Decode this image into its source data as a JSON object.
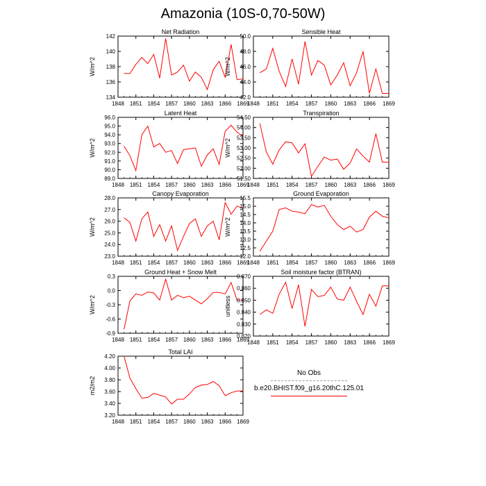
{
  "title": "Amazonia (10S-0,70-50W)",
  "colors": {
    "series": "#ff0000",
    "noobs": "#999999"
  },
  "legend": {
    "noobs_label": "No Obs",
    "model_label": "b.e20.BHIST.f09_g16.20thC.125.01"
  },
  "chart_data": [
    {
      "type": "line",
      "title": "Net Radiation",
      "ylabel": "W/m^2",
      "xlim": [
        1848,
        1869
      ],
      "xticks": [
        "1848",
        "1851",
        "1854",
        "1857",
        "1860",
        "1863",
        "1866",
        "1869"
      ],
      "ylim": [
        134,
        142
      ],
      "yticks": [
        "134",
        "136",
        "138",
        "140",
        "142"
      ],
      "x": [
        1849,
        1850,
        1851,
        1852,
        1853,
        1854,
        1855,
        1856,
        1857,
        1858,
        1859,
        1860,
        1861,
        1862,
        1863,
        1864,
        1865,
        1866,
        1867,
        1868,
        1869
      ],
      "values": [
        137.1,
        137.1,
        138.3,
        139.2,
        138.4,
        139.6,
        136.5,
        141.7,
        136.9,
        137.3,
        138.2,
        136.1,
        137.3,
        136.6,
        135.0,
        137.6,
        138.7,
        136.6,
        140.9,
        136.3,
        136.4
      ]
    },
    {
      "type": "line",
      "title": "Sensible Heat",
      "ylabel": "W/m^2",
      "xlim": [
        1848,
        1869
      ],
      "xticks": [
        "1848",
        "1851",
        "1854",
        "1857",
        "1860",
        "1863",
        "1866",
        "1869"
      ],
      "ylim": [
        42.0,
        50.0
      ],
      "yticks": [
        "42.0",
        "44.0",
        "46.0",
        "48.0",
        "50.0"
      ],
      "x": [
        1849,
        1850,
        1851,
        1852,
        1853,
        1854,
        1855,
        1856,
        1857,
        1858,
        1859,
        1860,
        1861,
        1862,
        1863,
        1864,
        1865,
        1866,
        1867,
        1868,
        1869
      ],
      "values": [
        45.2,
        45.7,
        48.4,
        45.4,
        43.4,
        47.0,
        43.7,
        49.3,
        44.9,
        46.8,
        46.2,
        43.6,
        44.9,
        46.5,
        43.5,
        45.2,
        48.0,
        42.5,
        45.7,
        42.5,
        42.5
      ]
    },
    {
      "type": "line",
      "title": "Latent Heat",
      "ylabel": "W/m^2",
      "xlim": [
        1848,
        1869
      ],
      "xticks": [
        "1848",
        "1851",
        "1854",
        "1857",
        "1860",
        "1863",
        "1866",
        "1869"
      ],
      "ylim": [
        89.0,
        96.0
      ],
      "yticks": [
        "89.0",
        "90.0",
        "91.0",
        "92.0",
        "93.0",
        "94.0",
        "95.0",
        "96.0"
      ],
      "x": [
        1849,
        1850,
        1851,
        1852,
        1853,
        1854,
        1855,
        1856,
        1857,
        1858,
        1859,
        1860,
        1861,
        1862,
        1863,
        1864,
        1865,
        1866,
        1867,
        1868,
        1869
      ],
      "values": [
        92.7,
        91.6,
        89.9,
        94.0,
        95.0,
        92.6,
        93.0,
        92.0,
        92.2,
        90.7,
        92.3,
        92.4,
        92.5,
        90.4,
        91.7,
        92.4,
        90.6,
        94.4,
        95.1,
        94.3,
        93.8
      ]
    },
    {
      "type": "line",
      "title": "Transpiration",
      "ylabel": "W/m^2",
      "xlim": [
        1848,
        1869
      ],
      "xticks": [
        "1848",
        "1851",
        "1854",
        "1857",
        "1860",
        "1863",
        "1866",
        "1869"
      ],
      "ylim": [
        51.5,
        54.5
      ],
      "yticks": [
        "51.50",
        "52.00",
        "52.50",
        "53.00",
        "53.50",
        "54.00",
        "54.50"
      ],
      "x": [
        1849,
        1850,
        1851,
        1852,
        1853,
        1854,
        1855,
        1856,
        1857,
        1858,
        1859,
        1860,
        1861,
        1862,
        1863,
        1864,
        1865,
        1866,
        1867,
        1868,
        1869
      ],
      "values": [
        54.2,
        52.8,
        52.2,
        52.9,
        53.3,
        53.25,
        52.75,
        53.2,
        51.6,
        52.1,
        52.55,
        52.4,
        52.45,
        51.95,
        52.25,
        52.95,
        52.6,
        52.3,
        53.7,
        52.3,
        52.3
      ]
    },
    {
      "type": "line",
      "title": "Canopy Evaporation",
      "ylabel": "W/m^2",
      "xlim": [
        1848,
        1869
      ],
      "xticks": [
        "1848",
        "1851",
        "1854",
        "1857",
        "1860",
        "1863",
        "1866",
        "1869"
      ],
      "ylim": [
        23.0,
        28.0
      ],
      "yticks": [
        "23.0",
        "24.0",
        "25.0",
        "26.0",
        "27.0",
        "28.0"
      ],
      "x": [
        1849,
        1850,
        1851,
        1852,
        1853,
        1854,
        1855,
        1856,
        1857,
        1858,
        1859,
        1860,
        1861,
        1862,
        1863,
        1864,
        1865,
        1866,
        1867,
        1868,
        1869
      ],
      "values": [
        26.3,
        25.9,
        24.3,
        26.2,
        26.8,
        24.7,
        25.7,
        24.3,
        25.6,
        23.5,
        24.7,
        25.8,
        26.2,
        24.7,
        25.6,
        26.0,
        24.4,
        27.6,
        26.6,
        27.3,
        27.1
      ]
    },
    {
      "type": "line",
      "title": "Ground Evaporation",
      "ylabel": "W/m^2",
      "xlim": [
        1848,
        1869
      ],
      "xticks": [
        "1848",
        "1851",
        "1854",
        "1857",
        "1860",
        "1863",
        "1866",
        "1869"
      ],
      "ylim": [
        12.0,
        15.5
      ],
      "yticks": [
        "12.0",
        "12.5",
        "13.0",
        "13.5",
        "14.0",
        "14.5",
        "15.0",
        "15.5"
      ],
      "x": [
        1849,
        1850,
        1851,
        1852,
        1853,
        1854,
        1855,
        1856,
        1857,
        1858,
        1859,
        1860,
        1861,
        1862,
        1863,
        1864,
        1865,
        1866,
        1867,
        1868,
        1869
      ],
      "values": [
        12.3,
        12.9,
        13.5,
        14.8,
        14.9,
        14.7,
        14.65,
        14.55,
        15.1,
        14.95,
        15.05,
        14.4,
        13.9,
        13.6,
        13.8,
        13.45,
        13.6,
        14.35,
        14.7,
        14.4,
        14.3
      ]
    },
    {
      "type": "line",
      "title": "Ground Heat + Snow Melt",
      "ylabel": "W/m^2",
      "xlim": [
        1848,
        1869
      ],
      "xticks": [
        "1848",
        "1851",
        "1854",
        "1857",
        "1860",
        "1863",
        "1866",
        "1869"
      ],
      "ylim": [
        -0.9,
        0.3
      ],
      "yticks": [
        "-0.9",
        "-0.6",
        "-0.3",
        "0.0",
        "0.3"
      ],
      "x": [
        1849,
        1850,
        1851,
        1852,
        1853,
        1854,
        1855,
        1856,
        1857,
        1858,
        1859,
        1860,
        1861,
        1862,
        1863,
        1864,
        1865,
        1866,
        1867,
        1868,
        1869
      ],
      "values": [
        -0.82,
        -0.22,
        -0.07,
        -0.1,
        -0.03,
        -0.05,
        -0.2,
        0.24,
        -0.2,
        -0.1,
        -0.15,
        -0.12,
        -0.2,
        -0.28,
        -0.17,
        -0.04,
        -0.04,
        -0.07,
        0.17,
        -0.2,
        -0.2
      ]
    },
    {
      "type": "line",
      "title": "Soil moisture factor (BTRAN)",
      "ylabel": "unitless",
      "xlim": [
        1848,
        1869
      ],
      "xticks": [
        "1848",
        "1851",
        "1854",
        "1857",
        "1860",
        "1863",
        "1866",
        "1869"
      ],
      "ylim": [
        0.82,
        0.87
      ],
      "yticks": [
        "0.820",
        "0.830",
        "0.840",
        "0.850",
        "0.860",
        "0.870"
      ],
      "x": [
        1849,
        1850,
        1851,
        1852,
        1853,
        1854,
        1855,
        1856,
        1857,
        1858,
        1859,
        1860,
        1861,
        1862,
        1863,
        1864,
        1865,
        1866,
        1867,
        1868,
        1869
      ],
      "values": [
        0.838,
        0.842,
        0.839,
        0.855,
        0.865,
        0.843,
        0.863,
        0.828,
        0.859,
        0.853,
        0.854,
        0.861,
        0.851,
        0.85,
        0.861,
        0.849,
        0.838,
        0.855,
        0.845,
        0.862,
        0.862
      ]
    },
    {
      "type": "line",
      "title": "Total LAI",
      "ylabel": "m2/m2",
      "xlim": [
        1848,
        1869
      ],
      "xticks": [
        "1848",
        "1851",
        "1854",
        "1857",
        "1860",
        "1863",
        "1866",
        "1869"
      ],
      "ylim": [
        3.2,
        4.2
      ],
      "yticks": [
        "3.20",
        "3.40",
        "3.60",
        "3.80",
        "4.00",
        "4.20"
      ],
      "x": [
        1849,
        1850,
        1851,
        1852,
        1853,
        1854,
        1855,
        1856,
        1857,
        1858,
        1859,
        1860,
        1861,
        1862,
        1863,
        1864,
        1865,
        1866,
        1867,
        1868,
        1869
      ],
      "values": [
        4.2,
        3.83,
        3.65,
        3.49,
        3.5,
        3.57,
        3.54,
        3.51,
        3.39,
        3.47,
        3.47,
        3.56,
        3.67,
        3.71,
        3.72,
        3.77,
        3.7,
        3.53,
        3.58,
        3.61,
        3.61
      ]
    }
  ]
}
